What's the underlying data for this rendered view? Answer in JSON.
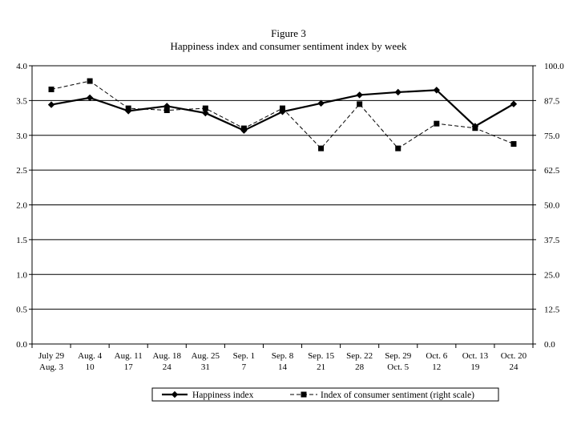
{
  "chart_data": {
    "type": "line",
    "title": "Figure 3",
    "subtitle": "Happiness index and consumer sentiment index by week",
    "xlabel": "",
    "ylabel": "",
    "categories": [
      [
        "July 29",
        "Aug. 3"
      ],
      [
        "Aug. 4",
        "10"
      ],
      [
        "Aug. 11",
        "17"
      ],
      [
        "Aug. 18",
        "24"
      ],
      [
        "Aug. 25",
        "31"
      ],
      [
        "Sep. 1",
        "7"
      ],
      [
        "Sep. 8",
        "14"
      ],
      [
        "Sep. 15",
        "21"
      ],
      [
        "Sep. 22",
        "28"
      ],
      [
        "Sep. 29",
        "Oct. 5"
      ],
      [
        "Oct. 6",
        "12"
      ],
      [
        "Oct. 13",
        "19"
      ],
      [
        "Oct. 20",
        "24"
      ]
    ],
    "y_left": {
      "min": 0,
      "max": 4,
      "ticks": [
        "0.0",
        "0.5",
        "1.0",
        "1.5",
        "2.0",
        "2.5",
        "3.0",
        "3.5",
        "4.0"
      ]
    },
    "y_right": {
      "min": 0,
      "max": 100,
      "ticks": [
        "0.0",
        "12.5",
        "25.0",
        "37.5",
        "50.0",
        "62.5",
        "75.0",
        "87.5",
        "100.0"
      ]
    },
    "grid": "horizontal",
    "legend_position": "bottom",
    "series": [
      {
        "name": "Happiness index",
        "axis": "left",
        "marker": "diamond",
        "line": "solid",
        "values": [
          3.44,
          3.54,
          3.35,
          3.42,
          3.32,
          3.07,
          3.34,
          3.46,
          3.58,
          3.62,
          3.65,
          3.13,
          3.45
        ]
      },
      {
        "name": "Index of consumer sentiment (right scale)",
        "axis": "right",
        "marker": "square",
        "line": "dashed",
        "values": [
          91.5,
          94.5,
          84.7,
          84.0,
          84.7,
          77.5,
          84.7,
          70.3,
          86.2,
          70.3,
          79.2,
          77.6,
          71.9
        ]
      }
    ]
  },
  "colors": {
    "line": "#000000",
    "grid": "#000000",
    "background": "#ffffff"
  }
}
